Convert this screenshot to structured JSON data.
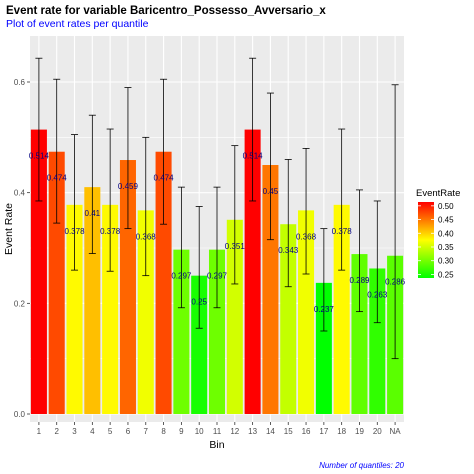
{
  "chart_data": {
    "type": "bar",
    "title": "Event rate for variable Baricentro_Possesso_Avversario_x",
    "subtitle": "Plot of event rates per quantile",
    "xlabel": "Bin",
    "ylabel": "Event Rate",
    "caption": "Number of quantiles: 20",
    "categories": [
      "1",
      "2",
      "3",
      "4",
      "5",
      "6",
      "7",
      "8",
      "9",
      "10",
      "11",
      "12",
      "13",
      "14",
      "15",
      "16",
      "17",
      "18",
      "19",
      "20",
      "NA"
    ],
    "values": [
      0.514,
      0.474,
      0.378,
      0.41,
      0.378,
      0.459,
      0.368,
      0.474,
      0.297,
      0.25,
      0.297,
      0.351,
      0.514,
      0.45,
      0.343,
      0.368,
      0.237,
      0.378,
      0.289,
      0.263,
      0.286
    ],
    "data_labels": [
      "0.514",
      "0.474",
      "0.378",
      "0.41",
      "0.378",
      "0.459",
      "0.368",
      "0.474",
      "0.297",
      "0.25",
      "0.297",
      "0.351",
      "0.514",
      "0.45",
      "0.343",
      "0.368",
      "0.237",
      "0.378",
      "0.289",
      "0.263",
      "0.286"
    ],
    "error_low": [
      0.385,
      0.345,
      0.26,
      0.29,
      0.258,
      0.335,
      0.25,
      0.343,
      0.192,
      0.155,
      0.192,
      0.235,
      0.385,
      0.315,
      0.23,
      0.253,
      0.15,
      0.26,
      0.185,
      0.165,
      0.1
    ],
    "error_high": [
      0.643,
      0.605,
      0.505,
      0.54,
      0.515,
      0.59,
      0.5,
      0.605,
      0.41,
      0.375,
      0.41,
      0.485,
      0.643,
      0.58,
      0.46,
      0.48,
      0.335,
      0.515,
      0.405,
      0.385,
      0.595
    ],
    "ylim": [
      0,
      0.65
    ],
    "yticks": [
      0.0,
      0.2,
      0.4,
      0.6
    ],
    "ytick_labels": [
      "0.0",
      "0.2",
      "0.4",
      "0.6"
    ],
    "grid": true,
    "legend": {
      "title": "EventRate",
      "placement": "right",
      "ticks": [
        0.25,
        0.3,
        0.35,
        0.4,
        0.45,
        0.5
      ],
      "tick_labels": [
        "0.25",
        "0.30",
        "0.35",
        "0.40",
        "0.45",
        "0.50"
      ],
      "range": [
        0.237,
        0.514
      ]
    },
    "colors": {
      "low": "#00ff00",
      "high": "#ff0000",
      "panel": "#ebebeb",
      "grid": "#ffffff",
      "label": "#000080"
    }
  }
}
